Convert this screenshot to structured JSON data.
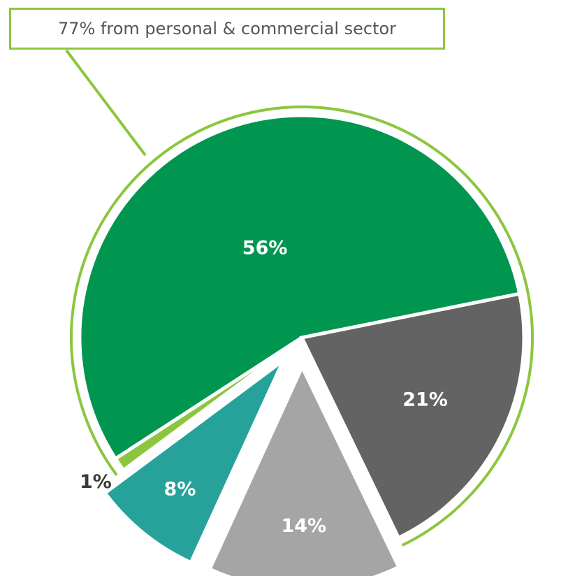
{
  "chart_data": {
    "type": "pie",
    "annotation": "77% from personal & commercial sector",
    "slices": [
      {
        "label": "56%",
        "value": 56,
        "color": "#009650",
        "text_color": "#ffffff",
        "exploded": false
      },
      {
        "label": "21%",
        "value": 21,
        "color": "#636363",
        "text_color": "#ffffff",
        "exploded": false
      },
      {
        "label": "14%",
        "value": 14,
        "color": "#a5a5a5",
        "text_color": "#ffffff",
        "exploded": true
      },
      {
        "label": "8%",
        "value": 8,
        "color": "#26a29a",
        "text_color": "#ffffff",
        "exploded": true
      },
      {
        "label": "1%",
        "value": 1,
        "color": "#8cc63f",
        "text_color": "#3b3b3b",
        "exploded": false
      }
    ],
    "group_outline_color": "#8cc63f"
  }
}
